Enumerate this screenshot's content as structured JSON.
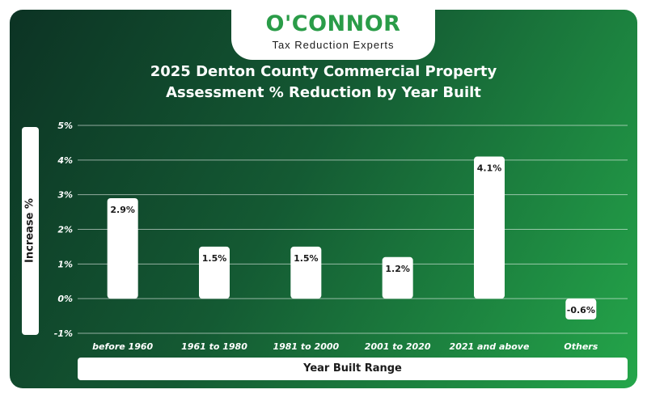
{
  "brand": {
    "name": "O'CONNOR",
    "tagline": "Tax Reduction Experts"
  },
  "colors": {
    "accent": "#2a9c48",
    "gradient_dark": "#0c3324",
    "gradient_light": "#24a64a",
    "bar": "#ffffff",
    "grid": "#ffffff"
  },
  "chart_data": {
    "type": "bar",
    "title_line1": "2025 Denton County Commercial Property",
    "title_line2": "Assessment % Reduction by Year Built",
    "xlabel": "Year Built Range",
    "ylabel": "Increase %",
    "categories": [
      "before 1960",
      "1961 to 1980",
      "1981 to 2000",
      "2001 to 2020",
      "2021 and above",
      "Others"
    ],
    "values": [
      2.9,
      1.5,
      1.5,
      1.2,
      4.1,
      -0.6
    ],
    "data_labels": [
      "2.9%",
      "1.5%",
      "1.5%",
      "1.2%",
      "4.1%",
      "-0.6%"
    ],
    "yticks": [
      5,
      4,
      3,
      2,
      1,
      0,
      -1
    ],
    "ytick_labels": [
      "5%",
      "4%",
      "3%",
      "2%",
      "1%",
      "0%",
      "-1%"
    ],
    "ylim": [
      -1,
      5
    ],
    "grid": true,
    "legend": "none"
  }
}
